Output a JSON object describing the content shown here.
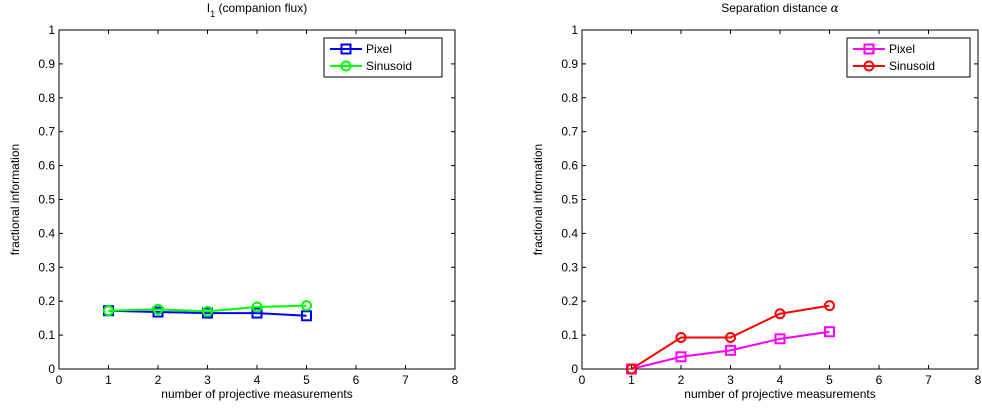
{
  "chart_data": [
    {
      "type": "line",
      "title_main": "I",
      "title_sub": "1",
      "title_rest": " (companion flux)",
      "xlabel": "number of projective measurements",
      "ylabel": "fractional information",
      "xlim": [
        0,
        8
      ],
      "ylim": [
        0,
        1
      ],
      "xticks": [
        "0",
        "1",
        "2",
        "3",
        "4",
        "5",
        "6",
        "7",
        "8"
      ],
      "yticks": [
        "0",
        "0.1",
        "0.2",
        "0.3",
        "0.4",
        "0.5",
        "0.6",
        "0.7",
        "0.8",
        "0.9",
        "1"
      ],
      "grid": false,
      "legend_position": "top-right",
      "x": [
        1,
        2,
        3,
        4,
        5
      ],
      "series": [
        {
          "name": "Pixel",
          "marker": "square",
          "color": "#0000ff",
          "values": [
            0.172,
            0.168,
            0.165,
            0.165,
            0.157
          ]
        },
        {
          "name": "Sinusoid",
          "marker": "circle",
          "color": "#00ff00",
          "values": [
            0.172,
            0.176,
            0.17,
            0.183,
            0.187
          ]
        }
      ]
    },
    {
      "type": "line",
      "title_main": "Separation distance ",
      "title_sub": "",
      "title_rest": "α",
      "xlabel": "number of projective measurements",
      "ylabel": "fractional information",
      "xlim": [
        0,
        8
      ],
      "ylim": [
        0,
        1
      ],
      "xticks": [
        "0",
        "1",
        "2",
        "3",
        "4",
        "5",
        "6",
        "7",
        "8"
      ],
      "yticks": [
        "0",
        "0.1",
        "0.2",
        "0.3",
        "0.4",
        "0.5",
        "0.6",
        "0.7",
        "0.8",
        "0.9",
        "1"
      ],
      "grid": false,
      "legend_position": "top-right",
      "x": [
        1,
        2,
        3,
        4,
        5
      ],
      "series": [
        {
          "name": "Pixel",
          "marker": "square",
          "color": "#ff00ff",
          "values": [
            0.0,
            0.036,
            0.055,
            0.089,
            0.11
          ]
        },
        {
          "name": "Sinusoid",
          "marker": "circle",
          "color": "#ff0000",
          "values": [
            0.0,
            0.093,
            0.093,
            0.163,
            0.187
          ]
        }
      ]
    }
  ]
}
